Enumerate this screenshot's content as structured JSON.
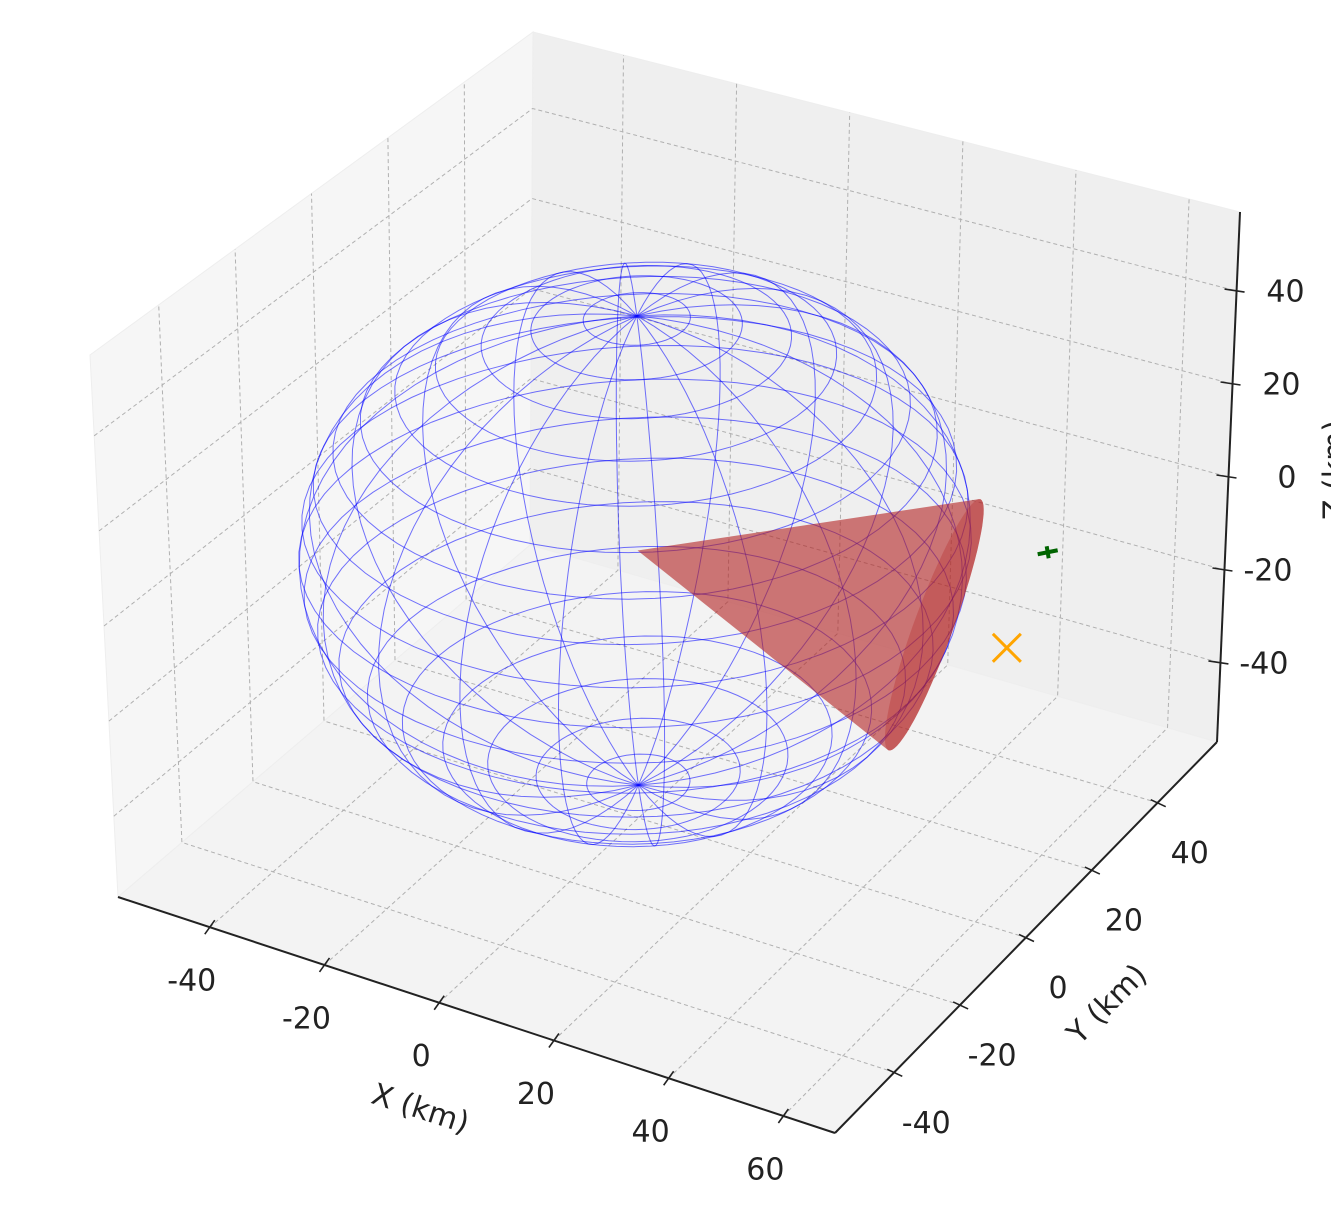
{
  "chart_data": {
    "type": "scatter3d",
    "xlabel": "X (km)",
    "ylabel": "Y (km)",
    "zlabel": "Z (km)",
    "xlim": [
      -56,
      69
    ],
    "ylim": [
      -58,
      58
    ],
    "zlim": [
      -57,
      57
    ],
    "xticks": [
      -40,
      -20,
      0,
      20,
      40,
      60
    ],
    "yticks": [
      -40,
      -20,
      0,
      20,
      40
    ],
    "zticks": [
      -40,
      -20,
      0,
      20,
      40
    ],
    "grid": true,
    "sphere": {
      "center": [
        0,
        0,
        0
      ],
      "radius": 50,
      "color": "#0000ff"
    },
    "cone": {
      "apex": [
        0,
        0,
        0
      ],
      "axis": [
        40,
        20,
        -15
      ],
      "radius": 22,
      "color": "#b22222"
    },
    "points": [
      {
        "x": 50,
        "y": 25,
        "z": -20,
        "color": "#ffa500",
        "marker": "x"
      },
      {
        "x": 55,
        "y": 28,
        "z": 0,
        "color": "#006400",
        "marker": "plus"
      }
    ]
  }
}
